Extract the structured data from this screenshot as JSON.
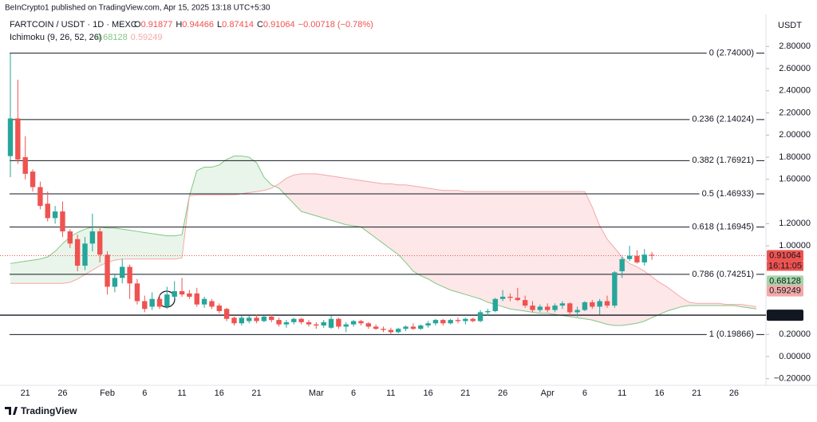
{
  "chart_data": {
    "type": "candlestick",
    "publisher": "BeInCrypto1 published on TradingView.com, Apr 15, 2025 13:18 UTC+5:30",
    "title": "FARTCOIN / USDT · 1D · MEXC",
    "ohlc_labels": [
      "O",
      "H",
      "L",
      "C"
    ],
    "ohlc_values": [
      0.91877,
      0.94466,
      0.87414,
      0.91064
    ],
    "change_label": "−0.00718 (−0.78%)",
    "y_axis_unit": "USDT",
    "brand": "TradingView",
    "up_color": "#26a69a",
    "down_color": "#ef5350",
    "categories": [
      null,
      null,
      "21",
      null,
      null,
      null,
      null,
      "26",
      null,
      null,
      null,
      null,
      null,
      "Feb",
      null,
      null,
      null,
      null,
      "6",
      null,
      null,
      null,
      null,
      "11",
      null,
      null,
      null,
      null,
      "16",
      null,
      null,
      null,
      null,
      "21",
      null,
      null,
      null,
      null,
      null,
      null,
      null,
      "Mar",
      null,
      null,
      null,
      null,
      "6",
      null,
      null,
      null,
      null,
      "11",
      null,
      null,
      null,
      null,
      "16",
      null,
      null,
      null,
      null,
      "21",
      null,
      null,
      null,
      null,
      "26",
      null,
      null,
      null,
      null,
      null,
      "Apr",
      null,
      null,
      null,
      null,
      "6",
      null,
      null,
      null,
      null,
      "11",
      null,
      null,
      null,
      null,
      "16",
      null,
      null,
      null,
      null,
      "21",
      null,
      null,
      null,
      null,
      "26",
      null,
      null,
      null
    ],
    "open": [
      1.81,
      2.15,
      1.8,
      1.67,
      1.53,
      1.38,
      1.25,
      1.31,
      1.13,
      1.06,
      0.82,
      1.02,
      1.13,
      0.92,
      0.63,
      0.71,
      0.81,
      0.66,
      0.5,
      0.45,
      0.52,
      0.45,
      0.54,
      0.59,
      0.57,
      0.57,
      0.47,
      0.5,
      0.46,
      0.43,
      0.35,
      0.3,
      0.32,
      0.35,
      0.32,
      0.36,
      0.33,
      0.29,
      0.31,
      0.34,
      0.31,
      0.29,
      0.28,
      0.26,
      0.34,
      0.27,
      0.29,
      0.32,
      0.3,
      0.27,
      0.25,
      0.24,
      0.22,
      0.25,
      0.27,
      0.25,
      0.28,
      0.3,
      0.33,
      0.3,
      0.33,
      0.32,
      0.34,
      0.32,
      0.4,
      0.41,
      0.52,
      0.54,
      0.53,
      0.51,
      0.46,
      0.42,
      0.45,
      0.42,
      0.46,
      0.48,
      0.4,
      0.42,
      0.49,
      0.45,
      0.5,
      0.46,
      0.77,
      0.88,
      0.91,
      0.85,
      0.91877,
      null,
      null,
      null,
      null,
      null,
      null,
      null,
      null,
      null,
      null,
      null,
      null,
      null,
      null
    ],
    "high": [
      2.74,
      2.5,
      1.99,
      1.69,
      1.58,
      1.49,
      1.36,
      1.4,
      1.15,
      1.1,
      1.08,
      1.29,
      1.16,
      0.95,
      0.75,
      0.88,
      0.83,
      0.7,
      0.55,
      0.58,
      0.56,
      0.63,
      0.68,
      0.71,
      0.6,
      0.62,
      0.54,
      0.52,
      0.48,
      0.44,
      0.36,
      0.37,
      0.37,
      0.38,
      0.37,
      0.38,
      0.35,
      0.33,
      0.35,
      0.35,
      0.33,
      0.31,
      0.33,
      0.37,
      0.35,
      0.31,
      0.33,
      0.33,
      0.31,
      0.29,
      0.27,
      0.26,
      0.26,
      0.28,
      0.3,
      0.29,
      0.32,
      0.34,
      0.34,
      0.34,
      0.35,
      0.35,
      0.35,
      0.42,
      0.43,
      0.53,
      0.6,
      0.57,
      0.62,
      0.55,
      0.5,
      0.47,
      0.48,
      0.48,
      0.5,
      0.49,
      0.45,
      0.5,
      0.51,
      0.52,
      0.55,
      0.77,
      0.9,
      1.0,
      0.96,
      0.97,
      0.94466,
      null,
      null,
      null,
      null,
      null,
      null,
      null,
      null,
      null,
      null,
      null,
      null,
      null,
      null
    ],
    "low": [
      1.62,
      1.74,
      1.6,
      1.49,
      1.33,
      1.22,
      1.2,
      1.08,
      0.98,
      0.77,
      0.78,
      0.95,
      0.85,
      0.56,
      0.58,
      0.66,
      0.52,
      0.47,
      0.4,
      0.42,
      0.43,
      0.43,
      0.52,
      0.54,
      0.52,
      0.45,
      0.44,
      0.43,
      0.39,
      0.32,
      0.28,
      0.28,
      0.3,
      0.3,
      0.31,
      0.31,
      0.27,
      0.26,
      0.29,
      0.29,
      0.27,
      0.25,
      0.26,
      0.25,
      0.25,
      0.22,
      0.27,
      0.28,
      0.25,
      0.24,
      0.22,
      0.19866,
      0.21,
      0.23,
      0.24,
      0.24,
      0.26,
      0.28,
      0.28,
      0.29,
      0.3,
      0.29,
      0.31,
      0.31,
      0.37,
      0.4,
      0.5,
      0.5,
      0.5,
      0.44,
      0.4,
      0.4,
      0.4,
      0.4,
      0.43,
      0.36,
      0.36,
      0.41,
      0.43,
      0.38,
      0.44,
      0.44,
      0.71,
      0.86,
      0.84,
      0.82,
      0.87414,
      null,
      null,
      null,
      null,
      null,
      null,
      null,
      null,
      null,
      null,
      null,
      null,
      null,
      null
    ],
    "close": [
      2.15,
      1.78,
      1.65,
      1.53,
      1.36,
      1.25,
      1.31,
      1.13,
      1.02,
      0.82,
      1.02,
      1.13,
      0.92,
      0.63,
      0.71,
      0.81,
      0.66,
      0.5,
      0.43,
      0.52,
      0.45,
      0.56,
      0.59,
      0.56,
      0.54,
      0.47,
      0.52,
      0.45,
      0.41,
      0.34,
      0.3,
      0.35,
      0.35,
      0.32,
      0.36,
      0.33,
      0.29,
      0.31,
      0.34,
      0.31,
      0.29,
      0.28,
      0.31,
      0.34,
      0.27,
      0.29,
      0.32,
      0.3,
      0.27,
      0.25,
      0.24,
      0.22,
      0.25,
      0.27,
      0.25,
      0.28,
      0.3,
      0.33,
      0.3,
      0.33,
      0.32,
      0.34,
      0.32,
      0.4,
      0.41,
      0.52,
      0.54,
      0.53,
      0.51,
      0.46,
      0.42,
      0.45,
      0.42,
      0.46,
      0.48,
      0.4,
      0.42,
      0.49,
      0.45,
      0.5,
      0.46,
      0.76,
      0.88,
      0.91,
      0.85,
      0.92,
      0.91064,
      null,
      null,
      null,
      null,
      null,
      null,
      null,
      null,
      null,
      null,
      null,
      null,
      null,
      null
    ],
    "indicator": {
      "label": "Ichimoku (9, 26, 52, 26)",
      "last_values": [
        0.68128,
        0.59249
      ],
      "span_a": {
        "color": "#81c784",
        "fill": "rgba(76,175,80,0.12)",
        "values": [
          0.84,
          0.85,
          0.86,
          0.87,
          0.88,
          0.9,
          0.95,
          1.02,
          1.08,
          1.12,
          1.15,
          1.17,
          1.17,
          1.16,
          1.16,
          1.15,
          1.14,
          1.13,
          1.12,
          1.11,
          1.1,
          1.09,
          1.09,
          1.1,
          1.45,
          1.68,
          1.71,
          1.71,
          1.73,
          1.78,
          1.81,
          1.81,
          1.8,
          1.75,
          1.62,
          1.55,
          1.52,
          1.45,
          1.38,
          1.31,
          1.29,
          1.27,
          1.25,
          1.23,
          1.21,
          1.19,
          1.18,
          1.17,
          1.12,
          1.07,
          1.02,
          0.97,
          0.92,
          0.85,
          0.77,
          0.73,
          0.7,
          0.66,
          0.63,
          0.6,
          0.58,
          0.56,
          0.54,
          0.52,
          0.49,
          0.47,
          0.45,
          0.43,
          0.42,
          0.41,
          0.4,
          0.39,
          0.39,
          0.38,
          0.37,
          0.36,
          0.35,
          0.34,
          0.33,
          0.31,
          0.29,
          0.28,
          0.28,
          0.29,
          0.3,
          0.32,
          0.35,
          0.38,
          0.41,
          0.43,
          0.45,
          0.46,
          0.46,
          0.46,
          0.46,
          0.46,
          0.46,
          0.46,
          0.45,
          0.44,
          0.43
        ]
      },
      "span_b": {
        "color": "#f4a9a8",
        "fill": "rgba(242,54,69,0.12)",
        "values": [
          0.66,
          0.66,
          0.66,
          0.66,
          0.66,
          0.66,
          0.66,
          0.66,
          0.67,
          0.7,
          0.74,
          0.78,
          0.82,
          0.85,
          0.87,
          0.88,
          0.88,
          0.88,
          0.88,
          0.88,
          0.88,
          0.88,
          0.88,
          0.89,
          1.45,
          1.46,
          1.46,
          1.46,
          1.46,
          1.46,
          1.46,
          1.47,
          1.48,
          1.49,
          1.5,
          1.52,
          1.56,
          1.61,
          1.64,
          1.65,
          1.65,
          1.65,
          1.64,
          1.63,
          1.62,
          1.61,
          1.6,
          1.59,
          1.58,
          1.57,
          1.56,
          1.56,
          1.55,
          1.55,
          1.54,
          1.53,
          1.52,
          1.51,
          1.5,
          1.5,
          1.5,
          1.49,
          1.49,
          1.49,
          1.49,
          1.49,
          1.49,
          1.49,
          1.49,
          1.49,
          1.49,
          1.49,
          1.49,
          1.49,
          1.49,
          1.49,
          1.49,
          1.49,
          1.35,
          1.18,
          1.06,
          0.98,
          0.9,
          0.84,
          0.81,
          0.77,
          0.72,
          0.67,
          0.63,
          0.58,
          0.53,
          0.49,
          0.48,
          0.48,
          0.48,
          0.48,
          0.47,
          0.47,
          0.47,
          0.46,
          0.45
        ]
      }
    },
    "fib_levels": [
      {
        "value": 2.74,
        "label": "0 (2.74000)"
      },
      {
        "value": 2.14024,
        "label": "0.236 (2.14024)"
      },
      {
        "value": 1.76921,
        "label": "0.382 (1.76921)"
      },
      {
        "value": 1.46933,
        "label": "0.5 (1.46933)"
      },
      {
        "value": 1.16945,
        "label": "0.618 (1.16945)"
      },
      {
        "value": 0.74251,
        "label": "0.786 (0.74251)"
      },
      {
        "value": 0.19866,
        "label": "1 (0.19866)"
      }
    ],
    "horizontal_line": 0.37352,
    "last_price": {
      "value": 0.91064,
      "countdown": "16:11:05"
    },
    "ylim": [
      -0.26,
      3.09
    ],
    "yticks": [
      {
        "value": 2.8,
        "label": "2.80000"
      },
      {
        "value": 2.6,
        "label": "2.60000"
      },
      {
        "value": 2.4,
        "label": "2.40000"
      },
      {
        "value": 2.2,
        "label": "2.20000"
      },
      {
        "value": 2.0,
        "label": "2.00000"
      },
      {
        "value": 1.8,
        "label": "1.80000"
      },
      {
        "value": 1.6,
        "label": "1.60000"
      },
      {
        "value": 1.2,
        "label": "1.20000"
      },
      {
        "value": 1.0,
        "label": "1.00000"
      },
      {
        "value": 0.2,
        "label": "0.20000"
      },
      {
        "value": 0,
        "label": "0.00000"
      },
      {
        "value": -0.2,
        "label": "−0.20000"
      }
    ]
  }
}
